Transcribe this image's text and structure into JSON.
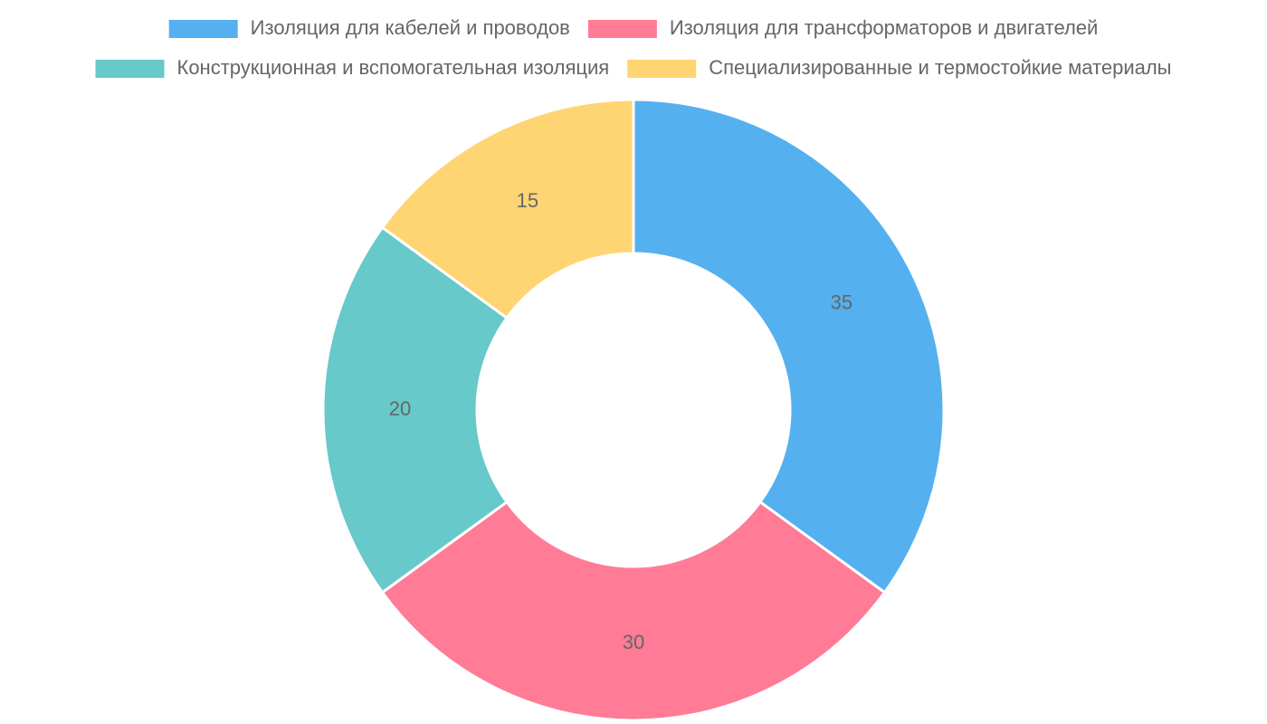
{
  "chart_data": {
    "type": "doughnut",
    "categories": [
      "Изоляция для кабелей и проводов",
      "Изоляция для трансформаторов и двигателей",
      "Конструкционная и вспомогательная изоляция",
      "Специализированные и термостойкие материалы"
    ],
    "values": [
      35,
      30,
      20,
      15
    ],
    "colors": [
      "#55b0ef",
      "#ff7b96",
      "#67c9c9",
      "#ffd573"
    ],
    "legend": "top"
  }
}
